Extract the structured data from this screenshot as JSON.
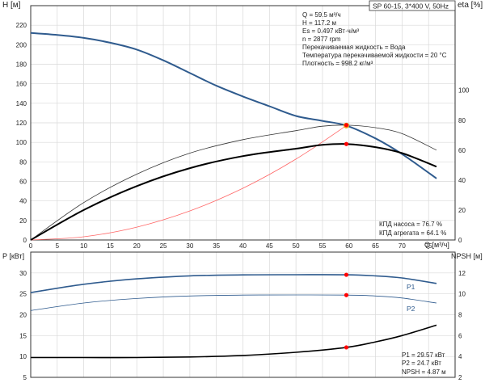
{
  "header": {
    "model": "SP 60-15, 3*400 V, 50Hz",
    "info_lines": [
      "Q = 59.5 м³/ч",
      "H = 117.2 м",
      "Es = 0.497 кВт·ч/м³",
      "n = 2877 rpm",
      "Перекачиваемая жидкость = Вода",
      "Температура перекачиваемой жидкости = 20 °C",
      "Плотность = 998.2 кг/м³"
    ]
  },
  "efficiency_notes": [
    "КПД насоса = 76.7 %",
    "КПД агрегата = 64.1 %"
  ],
  "power_notes": [
    "P1 = 29.57 кВт",
    "P2 = 24.7 кВт",
    "NPSH = 4.87 м"
  ],
  "colors": {
    "head_curve": "#2f5b8e",
    "power_curve": "#2f5b8e",
    "system_curve": "#ff6666",
    "efficiency": "#000000",
    "duty_marker": "#ff0000",
    "duty_point_main": "#ffcc33",
    "grid": "#d9d9d9"
  },
  "chart_data": [
    {
      "type": "line",
      "title": "",
      "xlabel": "Q [м³/ч]",
      "ylabel": "H [м]",
      "ylabel_right": "eta [%]",
      "xlim": [
        0,
        80
      ],
      "ylim": [
        0,
        240
      ],
      "ylim_right": [
        0,
        156.5
      ],
      "x_ticks": [
        0,
        5,
        10,
        15,
        20,
        25,
        30,
        35,
        40,
        45,
        50,
        55,
        60,
        65,
        70,
        75
      ],
      "y_ticks": [
        0,
        20,
        40,
        60,
        80,
        100,
        120,
        140,
        160,
        180,
        200,
        220
      ],
      "y_ticks_right": [
        0,
        20,
        40,
        60,
        80,
        100
      ],
      "grid": true,
      "series": [
        {
          "id": "head",
          "axis": "left",
          "x": [
            0,
            5,
            10,
            15,
            20,
            25,
            30,
            35,
            40,
            45,
            50,
            55,
            59.5,
            65,
            70,
            76.5
          ],
          "values": [
            212,
            210,
            207,
            202,
            195,
            184,
            171,
            158,
            147,
            137,
            127,
            122,
            117.2,
            104,
            88,
            63
          ]
        },
        {
          "id": "system",
          "axis": "left",
          "x": [
            0,
            10,
            20,
            30,
            40,
            50,
            59.5
          ],
          "values": [
            0,
            3.3,
            13.2,
            29.8,
            53,
            82.8,
            117.2
          ]
        },
        {
          "id": "eta_pump",
          "axis": "right",
          "x": [
            0,
            10,
            20,
            30,
            40,
            50,
            55,
            59.5,
            65,
            70,
            76.5
          ],
          "values": [
            0,
            25,
            44,
            58,
            67,
            73,
            76,
            76.7,
            75,
            71,
            60
          ]
        },
        {
          "id": "eta_unit",
          "axis": "right",
          "x": [
            0,
            10,
            20,
            30,
            40,
            50,
            55,
            59.5,
            65,
            70,
            76.5
          ],
          "values": [
            0,
            20,
            36,
            48,
            56,
            61,
            63.5,
            64.1,
            62,
            58,
            49
          ]
        }
      ],
      "duty_point": {
        "x": 59.5,
        "head": 117.2,
        "eta_pump": 76.7,
        "eta_unit": 64.1
      }
    },
    {
      "type": "line",
      "title": "",
      "xlabel": "",
      "ylabel": "P [кВт]",
      "ylabel_right": "NPSH [м]",
      "xlim": [
        0,
        80
      ],
      "ylim": [
        5,
        35
      ],
      "ylim_right": [
        2,
        14
      ],
      "y_ticks": [
        5,
        10,
        15,
        20,
        25,
        30
      ],
      "y_ticks_right": [
        2,
        4,
        6,
        8,
        10,
        12
      ],
      "grid": true,
      "series": [
        {
          "id": "P1",
          "name": "P1",
          "axis": "left",
          "x": [
            0,
            10,
            20,
            30,
            40,
            50,
            59.5,
            65,
            70,
            76.5
          ],
          "values": [
            25.3,
            27.3,
            28.6,
            29.3,
            29.55,
            29.58,
            29.57,
            29.3,
            28.8,
            27.5
          ]
        },
        {
          "id": "P2",
          "name": "P2",
          "axis": "left",
          "x": [
            0,
            10,
            20,
            30,
            40,
            50,
            59.5,
            65,
            70,
            76.5
          ],
          "values": [
            21.0,
            22.8,
            23.9,
            24.5,
            24.7,
            24.75,
            24.7,
            24.5,
            24.0,
            22.8
          ]
        },
        {
          "id": "NPSH",
          "axis": "right",
          "x": [
            0,
            10,
            20,
            30,
            40,
            50,
            59.5,
            65,
            70,
            76.5
          ],
          "values": [
            3.9,
            3.9,
            3.9,
            3.95,
            4.1,
            4.4,
            4.87,
            5.4,
            6.0,
            7.0
          ]
        }
      ],
      "duty_point": {
        "x": 59.5,
        "P1": 29.57,
        "P2": 24.7,
        "NPSH": 4.87
      }
    }
  ]
}
